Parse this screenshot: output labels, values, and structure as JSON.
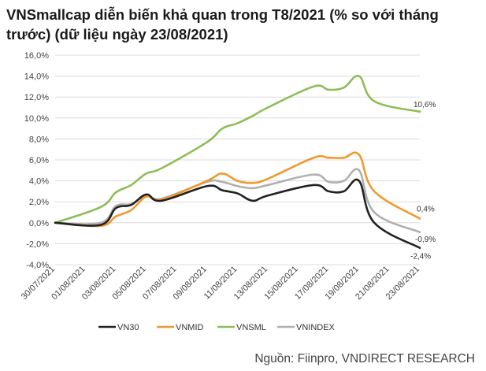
{
  "chart_data": {
    "type": "line",
    "title": "VNSmallcap diễn biến khả quan trong T8/2021 (% so với tháng trước) (dữ liệu ngày 23/08/2021)",
    "xlabel": "",
    "ylabel": "",
    "ylim": [
      -4,
      16
    ],
    "y_ticks": [
      "-4,0%",
      "-2,0%",
      "0,0%",
      "2,0%",
      "4,0%",
      "6,0%",
      "8,0%",
      "10,0%",
      "12,0%",
      "14,0%",
      "16,0%"
    ],
    "x_start": "30/07/2021",
    "x_end": "23/08/2021",
    "x_tick_labels": [
      "30/07/2021",
      "01/08/2021",
      "03/08/2021",
      "05/08/2021",
      "07/08/2021",
      "09/08/2021",
      "11/08/2021",
      "13/08/2021",
      "15/08/2021",
      "17/08/2021",
      "19/08/2021",
      "21/08/2021",
      "23/08/2021"
    ],
    "grid": true,
    "legend": "bottom",
    "series": [
      {
        "name": "VN30",
        "color": "#222222",
        "points": [
          [
            "30/07/2021",
            0.0
          ],
          [
            "02/08/2021",
            -0.2
          ],
          [
            "03/08/2021",
            1.4
          ],
          [
            "04/08/2021",
            1.7
          ],
          [
            "05/08/2021",
            2.7
          ],
          [
            "06/08/2021",
            2.1
          ],
          [
            "09/08/2021",
            3.5
          ],
          [
            "10/08/2021",
            3.1
          ],
          [
            "11/08/2021",
            2.8
          ],
          [
            "12/08/2021",
            2.1
          ],
          [
            "13/08/2021",
            2.6
          ],
          [
            "16/08/2021",
            3.6
          ],
          [
            "17/08/2021",
            3.0
          ],
          [
            "18/08/2021",
            3.0
          ],
          [
            "19/08/2021",
            4.0
          ],
          [
            "20/08/2021",
            0.0
          ],
          [
            "23/08/2021",
            -2.4
          ]
        ],
        "end_label": "-2,4%"
      },
      {
        "name": "VNMID",
        "color": "#f0992e",
        "points": [
          [
            "30/07/2021",
            0.0
          ],
          [
            "02/08/2021",
            -0.3
          ],
          [
            "03/08/2021",
            0.6
          ],
          [
            "04/08/2021",
            1.2
          ],
          [
            "05/08/2021",
            2.5
          ],
          [
            "06/08/2021",
            2.2
          ],
          [
            "09/08/2021",
            4.0
          ],
          [
            "10/08/2021",
            4.7
          ],
          [
            "11/08/2021",
            4.0
          ],
          [
            "12/08/2021",
            3.8
          ],
          [
            "13/08/2021",
            4.2
          ],
          [
            "16/08/2021",
            6.2
          ],
          [
            "17/08/2021",
            6.2
          ],
          [
            "18/08/2021",
            6.2
          ],
          [
            "19/08/2021",
            6.5
          ],
          [
            "20/08/2021",
            3.0
          ],
          [
            "23/08/2021",
            0.4
          ]
        ],
        "end_label": "0,4%"
      },
      {
        "name": "VNSML",
        "color": "#8fbd5a",
        "points": [
          [
            "30/07/2021",
            0.0
          ],
          [
            "02/08/2021",
            1.5
          ],
          [
            "03/08/2021",
            2.9
          ],
          [
            "04/08/2021",
            3.6
          ],
          [
            "05/08/2021",
            4.7
          ],
          [
            "06/08/2021",
            5.2
          ],
          [
            "09/08/2021",
            7.7
          ],
          [
            "10/08/2021",
            9.0
          ],
          [
            "11/08/2021",
            9.5
          ],
          [
            "12/08/2021",
            10.2
          ],
          [
            "13/08/2021",
            11.0
          ],
          [
            "16/08/2021",
            13.0
          ],
          [
            "17/08/2021",
            12.7
          ],
          [
            "18/08/2021",
            12.9
          ],
          [
            "19/08/2021",
            14.0
          ],
          [
            "20/08/2021",
            11.6
          ],
          [
            "23/08/2021",
            10.6
          ]
        ],
        "end_label": "10,6%"
      },
      {
        "name": "VNINDEX",
        "color": "#b0b0b0",
        "points": [
          [
            "30/07/2021",
            0.0
          ],
          [
            "02/08/2021",
            0.0
          ],
          [
            "03/08/2021",
            1.6
          ],
          [
            "04/08/2021",
            1.8
          ],
          [
            "05/08/2021",
            2.6
          ],
          [
            "06/08/2021",
            2.3
          ],
          [
            "09/08/2021",
            3.9
          ],
          [
            "10/08/2021",
            3.9
          ],
          [
            "11/08/2021",
            3.5
          ],
          [
            "12/08/2021",
            3.3
          ],
          [
            "13/08/2021",
            3.6
          ],
          [
            "16/08/2021",
            4.6
          ],
          [
            "17/08/2021",
            3.9
          ],
          [
            "18/08/2021",
            4.0
          ],
          [
            "19/08/2021",
            5.0
          ],
          [
            "20/08/2021",
            1.0
          ],
          [
            "23/08/2021",
            -0.9
          ]
        ],
        "end_label": "-0,9%"
      }
    ]
  },
  "source": "Nguồn: Fiinpro, VNDIRECT RESEARCH"
}
